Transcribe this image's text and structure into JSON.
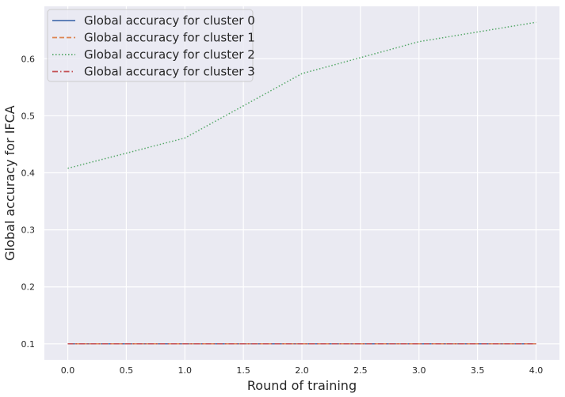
{
  "chart_data": {
    "type": "line",
    "xlabel": "Round of training",
    "ylabel": "Global accuracy for IFCA",
    "x": [
      0,
      1,
      2,
      3,
      4
    ],
    "xlim": [
      -0.2,
      4.2
    ],
    "ylim": [
      0.072,
      0.692
    ],
    "xticks": [
      0.0,
      0.5,
      1.0,
      1.5,
      2.0,
      2.5,
      3.0,
      3.5,
      4.0
    ],
    "xtick_labels": [
      "0.0",
      "0.5",
      "1.0",
      "1.5",
      "2.0",
      "2.5",
      "3.0",
      "3.5",
      "4.0"
    ],
    "yticks": [
      0.1,
      0.2,
      0.3,
      0.4,
      0.5,
      0.6
    ],
    "ytick_labels": [
      "0.1",
      "0.2",
      "0.3",
      "0.4",
      "0.5",
      "0.6"
    ],
    "grid": true,
    "legend_position": "top-left",
    "series": [
      {
        "name": "Global accuracy for cluster 0",
        "values": [
          0.1,
          0.1,
          0.1,
          0.1,
          0.1
        ],
        "color": "#4c72b0",
        "style": "solid"
      },
      {
        "name": "Global accuracy for cluster 1",
        "values": [
          0.1,
          0.1,
          0.1,
          0.1,
          0.1
        ],
        "color": "#dd8452",
        "style": "dashed"
      },
      {
        "name": "Global accuracy for cluster 2",
        "values": [
          0.408,
          0.461,
          0.574,
          0.63,
          0.664
        ],
        "color": "#55a868",
        "style": "dotted"
      },
      {
        "name": "Global accuracy for cluster 3",
        "values": [
          0.1,
          0.1,
          0.1,
          0.1,
          0.1
        ],
        "color": "#c44e52",
        "style": "dashdot"
      }
    ]
  }
}
